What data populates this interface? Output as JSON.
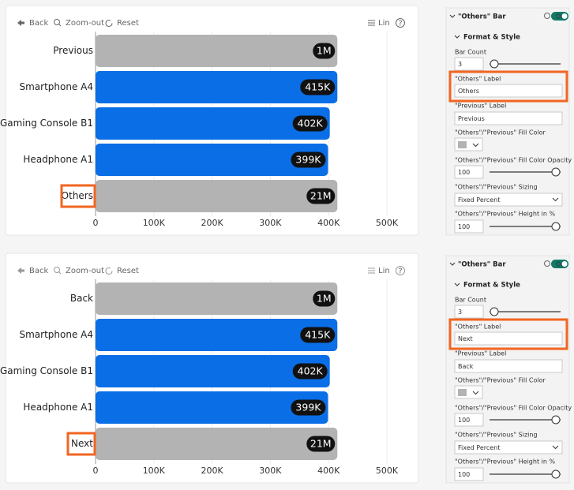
{
  "panels": [
    {
      "chart": {
        "type": "bar",
        "toolbar": {
          "back": "Back",
          "zoom": "Zoom-out",
          "reset": "Reset",
          "scale": "Lin",
          "help": "?"
        },
        "categories": [
          "Previous",
          "Smartphone A4",
          "Gaming Console B1",
          "Headphone A1",
          "Others"
        ],
        "values": [
          1000000,
          415000,
          402000,
          399000,
          21000000
        ],
        "value_labels": [
          "1M",
          "415K",
          "402K",
          "399K",
          "21M"
        ],
        "color": "#0a6ee6",
        "label_color": "#111111",
        "xlim": [
          0,
          500000
        ],
        "xticks": [
          0,
          {
            "value": 100000,
            "label": "100K"
          },
          {
            "value": 200000,
            "label": "200K"
          },
          {
            "value": 300000,
            "label": "300K"
          },
          {
            "value": 400000,
            "label": "400K"
          },
          {
            "value": 500000,
            "label": "500K"
          }
        ],
        "grid": true
      },
      "settings": {
        "title": "\"Others\" Bar",
        "toggle": "On",
        "section": "Format & Style",
        "bar_count_label": "Bar Count",
        "bar_count": "3",
        "others_label_title": "\"Others\" Label",
        "others_label": "Others",
        "previous_label_title": "\"Previous\" Label",
        "previous_label": "Previous",
        "fill_color_title": "\"Others\"/\"Previous\" Fill Color",
        "fill_color": "#b3b3b3",
        "opacity_title": "\"Others\"/\"Previous\" Fill Color Opacity",
        "opacity": "100",
        "sizing_title": "\"Others\"/\"Previous\" Sizing",
        "sizing": "Fixed Percent",
        "height_title": "\"Others\"/\"Previous\" Height in %",
        "height": "100"
      }
    },
    {
      "chart": {
        "type": "bar",
        "toolbar": {
          "back": "Back",
          "zoom": "Zoom-out",
          "reset": "Reset",
          "scale": "Lin",
          "help": "?"
        },
        "categories": [
          "Back",
          "Smartphone A4",
          "Gaming Console B1",
          "Headphone A1",
          "Next"
        ],
        "values": [
          1000000,
          415000,
          402000,
          399000,
          21000000
        ],
        "value_labels": [
          "1M",
          "415K",
          "402K",
          "399K",
          "21M"
        ],
        "color": "#0a6ee6",
        "label_color": "#111111",
        "xlim": [
          0,
          500000
        ],
        "xticks": [
          0,
          {
            "value": 100000,
            "label": "100K"
          },
          {
            "value": 200000,
            "label": "200K"
          },
          {
            "value": 300000,
            "label": "300K"
          },
          {
            "value": 400000,
            "label": "400K"
          },
          {
            "value": 500000,
            "label": "500K"
          }
        ],
        "grid": true
      },
      "settings": {
        "title": "\"Others\" Bar",
        "toggle": "On",
        "section": "Format & Style",
        "bar_count_label": "Bar Count",
        "bar_count": "3",
        "others_label_title": "\"Others\" Label",
        "others_label": "Next",
        "previous_label_title": "\"Previous\" Label",
        "previous_label": "Back",
        "fill_color_title": "\"Others\"/\"Previous\" Fill Color",
        "fill_color": "#b3b3b3",
        "opacity_title": "\"Others\"/\"Previous\" Fill Color Opacity",
        "opacity": "100",
        "sizing_title": "\"Others\"/\"Previous\" Sizing",
        "sizing": "Fixed Percent",
        "height_title": "\"Others\"/\"Previous\" Height in %",
        "height": "100"
      }
    }
  ]
}
